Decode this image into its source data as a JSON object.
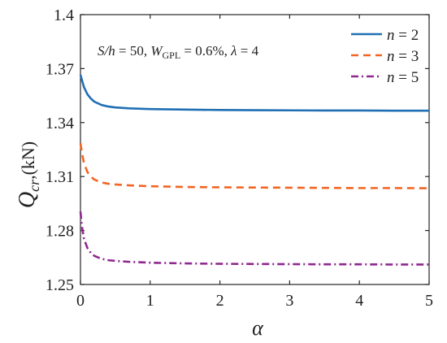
{
  "chart_data": {
    "type": "line",
    "title": "",
    "xlabel": "α",
    "ylabel": {
      "main": "Q",
      "sub": "cr",
      "unit": ",(kN)"
    },
    "xlim": [
      0,
      5
    ],
    "ylim": [
      1.25,
      1.4
    ],
    "xticks": [
      "0",
      "1",
      "2",
      "3",
      "4",
      "5"
    ],
    "yticks": [
      "1.25",
      "1.28",
      "1.31",
      "1.34",
      "1.37",
      "1.4"
    ],
    "annotation": {
      "p1": "S/h",
      "p2": " = 50, ",
      "p3": "W",
      "p4": "GPL",
      "p5": " = 0.6%, ",
      "p6": "λ",
      "p7": " = 4"
    },
    "legend_position": "top-right",
    "grid": false,
    "series": [
      {
        "name": "n = 2",
        "legend": {
          "var": "n",
          "eq": " = 2"
        },
        "color": "#1f6fb4",
        "dash": "solid",
        "x": [
          0,
          0.02,
          0.05,
          0.1,
          0.15,
          0.2,
          0.3,
          0.4,
          0.5,
          0.7,
          1,
          1.5,
          2,
          2.5,
          3,
          3.5,
          4,
          4.5,
          5
        ],
        "y": [
          1.3665,
          1.3638,
          1.3597,
          1.3557,
          1.3533,
          1.3516,
          1.3498,
          1.3489,
          1.3484,
          1.3479,
          1.3475,
          1.3472,
          1.347,
          1.3469,
          1.3468,
          1.3467,
          1.3467,
          1.3466,
          1.3466
        ]
      },
      {
        "name": "n = 3",
        "legend": {
          "var": "n",
          "eq": " = 3"
        },
        "color": "#f26522",
        "dash": "dashed",
        "x": [
          0,
          0.02,
          0.05,
          0.1,
          0.15,
          0.2,
          0.3,
          0.4,
          0.5,
          0.7,
          1,
          1.5,
          2,
          2.5,
          3,
          3.5,
          4,
          4.5,
          5
        ],
        "y": [
          1.3285,
          1.3235,
          1.3175,
          1.3125,
          1.3099,
          1.3083,
          1.3067,
          1.306,
          1.3056,
          1.3051,
          1.3046,
          1.3042,
          1.304,
          1.3039,
          1.3038,
          1.3037,
          1.3036,
          1.3036,
          1.3035
        ]
      },
      {
        "name": "n = 5",
        "legend": {
          "var": "n",
          "eq": " = 5"
        },
        "color": "#8e278f",
        "dash": "dashdot",
        "x": [
          0,
          0.02,
          0.05,
          0.1,
          0.15,
          0.2,
          0.3,
          0.4,
          0.5,
          0.7,
          1,
          1.5,
          2,
          2.5,
          3,
          3.5,
          4,
          4.5,
          5
        ],
        "y": [
          1.2905,
          1.2825,
          1.2755,
          1.2702,
          1.2675,
          1.2659,
          1.2643,
          1.2635,
          1.2631,
          1.2626,
          1.2621,
          1.2617,
          1.2615,
          1.2614,
          1.2613,
          1.2612,
          1.2612,
          1.2611,
          1.2611
        ]
      }
    ]
  }
}
